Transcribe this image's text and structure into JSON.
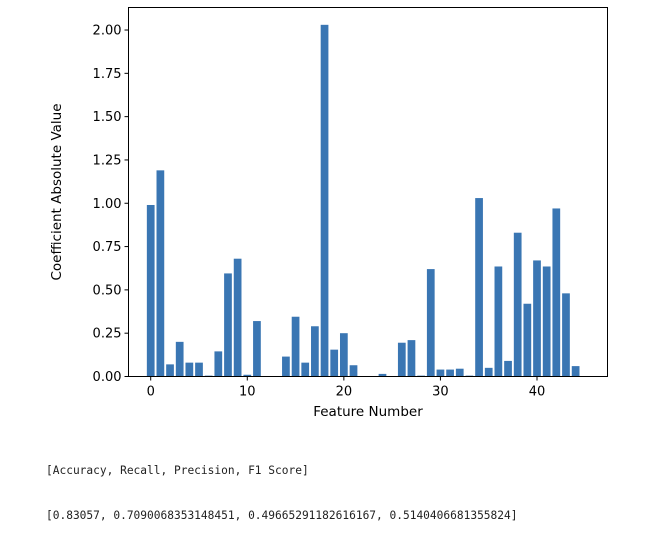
{
  "chart_data": {
    "type": "bar",
    "title": "",
    "xlabel": "Feature Number",
    "ylabel": "Coefficient Absolute Value",
    "xlim": [
      -2.3,
      47.3
    ],
    "ylim": [
      0,
      2.13
    ],
    "xticks": [
      0,
      10,
      20,
      30,
      40
    ],
    "yticks": [
      0.0,
      0.25,
      0.5,
      0.75,
      1.0,
      1.25,
      1.5,
      1.75,
      2.0
    ],
    "grid": false,
    "bar_color": "#3a76b3",
    "x": [
      0,
      1,
      2,
      3,
      4,
      5,
      6,
      7,
      8,
      9,
      10,
      11,
      12,
      13,
      14,
      15,
      16,
      17,
      18,
      19,
      20,
      21,
      22,
      23,
      24,
      25,
      26,
      27,
      28,
      29,
      30,
      31,
      32,
      33,
      34,
      35,
      36,
      37,
      38,
      39,
      40,
      41,
      42,
      43,
      44,
      45
    ],
    "values": [
      0.99,
      1.19,
      0.07,
      0.2,
      0.08,
      0.08,
      0.005,
      0.145,
      0.595,
      0.68,
      0.01,
      0.32,
      0.0,
      0.0,
      0.115,
      0.345,
      0.08,
      0.29,
      2.03,
      0.155,
      0.25,
      0.065,
      0.0,
      0.0,
      0.015,
      0.0,
      0.195,
      0.21,
      0.005,
      0.62,
      0.04,
      0.04,
      0.045,
      0.005,
      1.03,
      0.05,
      0.635,
      0.09,
      0.83,
      0.42,
      0.67,
      0.635,
      0.97,
      0.48,
      0.06,
      0.0
    ]
  },
  "output": {
    "line1": "[Accuracy, Recall, Precision, F1 Score]",
    "line2": "[0.83057, 0.7090068353148451, 0.49665291182616167, 0.5140406681355824]"
  }
}
